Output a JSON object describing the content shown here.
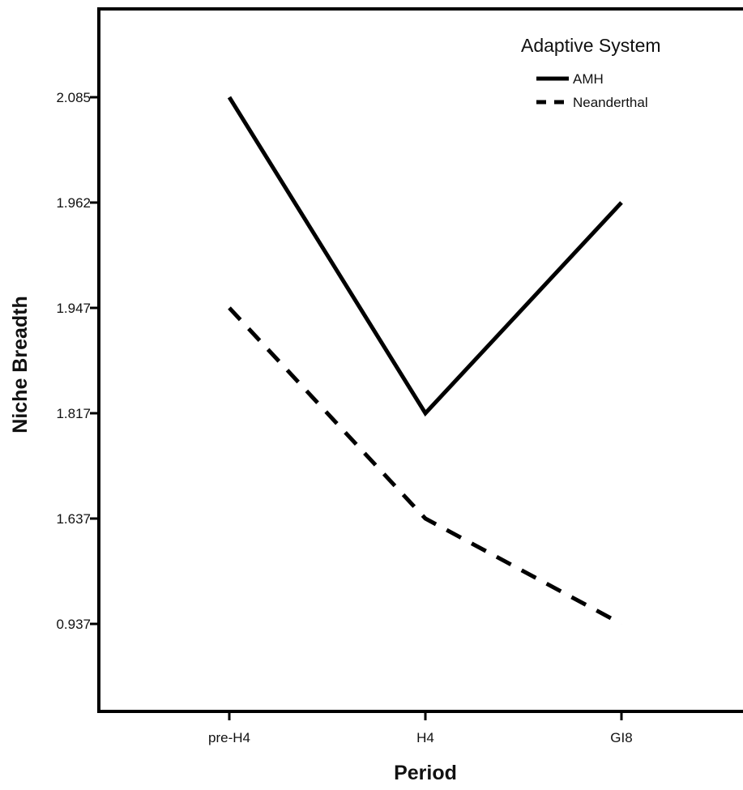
{
  "chart_data": {
    "type": "line",
    "xlabel": "Period",
    "ylabel": "Niche Breadth",
    "categories": [
      "pre-H4",
      "H4",
      "GI8"
    ],
    "y_tick_labels": [
      "0.937",
      "1.637",
      "1.817",
      "1.947",
      "1.962",
      "2.085"
    ],
    "y_axis_note": "tick labels are unevenly spaced; ticks are drawn at equal intervals",
    "legend": {
      "title": "Adaptive System",
      "position": "top-right"
    },
    "series": [
      {
        "name": "AMH",
        "line_style": "solid",
        "values": [
          2.085,
          1.817,
          1.962
        ]
      },
      {
        "name": "Neanderthal",
        "line_style": "dashed",
        "values": [
          1.947,
          1.637,
          0.937
        ]
      }
    ],
    "grid": false,
    "colors": {
      "line": "#000000",
      "axis": "#000000"
    }
  }
}
